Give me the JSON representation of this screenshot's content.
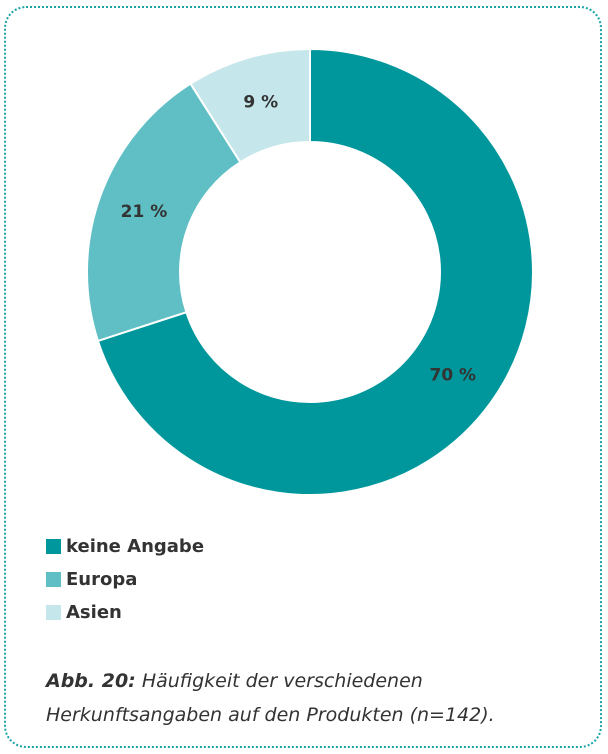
{
  "chart_data": {
    "type": "pie",
    "categories": [
      "keine Angabe",
      "Europa",
      "Asien"
    ],
    "values": [
      70,
      21,
      9
    ],
    "value_labels": [
      "70 %",
      "21 %",
      "9 %"
    ],
    "colors": [
      "#00979c",
      "#5fbfc4",
      "#c5e6ea"
    ],
    "donut": true,
    "caption_label": "Abb. 20:",
    "caption": "Häufigkeit der verschiedenen Herkunftsangaben auf den Produkten (n=142)."
  }
}
